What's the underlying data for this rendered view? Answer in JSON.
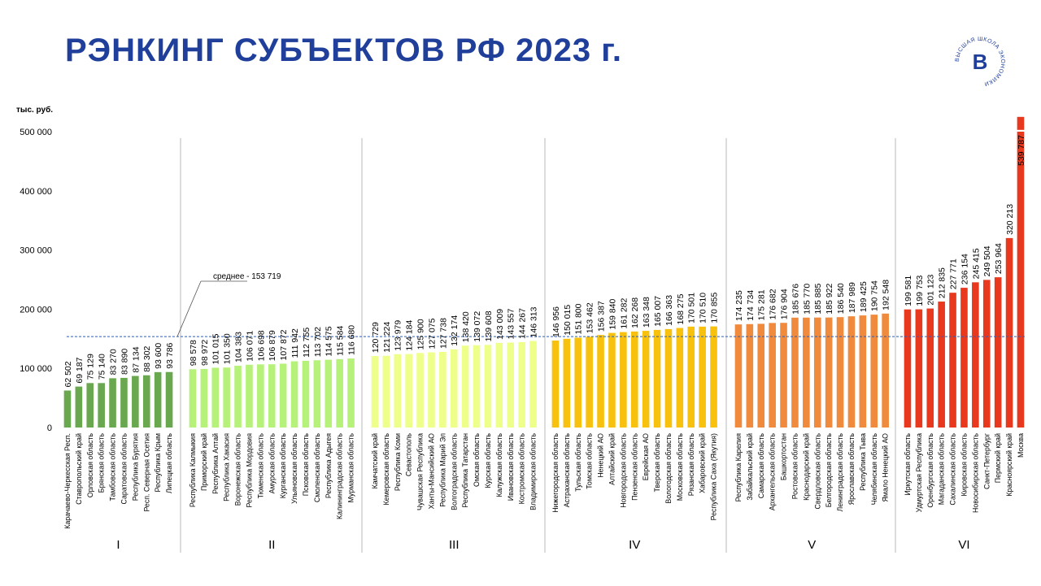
{
  "page": {
    "title": "РЭНКИНГ СУБЪЕКТОВ РФ 2023 г.",
    "logo_text": "ВЫСШАЯ ШКОЛА ЭКОНОМИКИ",
    "logo_mark": "В",
    "accent": "#1f3f9a"
  },
  "chart_data": {
    "type": "bar",
    "ylabel": "тыс. руб.",
    "ylim": [
      0,
      500000
    ],
    "yticks": [
      0,
      100000,
      200000,
      300000,
      400000,
      500000
    ],
    "ytick_labels": [
      "0",
      "100 000",
      "200 000",
      "300 000",
      "400 000",
      "500 000"
    ],
    "grid": false,
    "average": {
      "value": 153719,
      "label": "среднее - 153 719"
    },
    "groups": [
      {
        "label": "I",
        "color": "#6aa84f",
        "categories": [
          "Карачаево-Черкесская Респ.",
          "Ставропольский край",
          "Орловская область",
          "Брянская область",
          "Тамбовская область",
          "Саратовская область",
          "Республика Бурятия",
          "Респ. Северная Осетия",
          "Республика Крым",
          "Липецкая область"
        ],
        "values": [
          62502,
          69187,
          75129,
          75140,
          83270,
          83890,
          87134,
          88302,
          93600,
          93786
        ],
        "value_labels": [
          "62 502",
          "69 187",
          "75 129",
          "75 140",
          "83 270",
          "83 890",
          "87 134",
          "88 302",
          "93 600",
          "93 786"
        ]
      },
      {
        "label": "II",
        "color": "#b6f27a",
        "categories": [
          "Республика Калмыкия",
          "Приморский край",
          "Республика Алтай",
          "Республика Хакасия",
          "Воронежская область",
          "Республика Мордовия",
          "Тюменская область",
          "Амурская область",
          "Курганская область",
          "Ульяновская область",
          "Псковская область",
          "Смоленская область",
          "Республика Адыгея",
          "Калининградская область",
          "Мурманская область"
        ],
        "values": [
          98578,
          98972,
          101015,
          101350,
          104383,
          106071,
          106698,
          106879,
          107872,
          111942,
          112755,
          113702,
          114575,
          115584,
          116680
        ],
        "value_labels": [
          "98 578",
          "98 972",
          "101 015",
          "101 350",
          "104 383",
          "106 071",
          "106 698",
          "106 879",
          "107 872",
          "111 942",
          "112 755",
          "113 702",
          "114 575",
          "115 584",
          "116 680"
        ]
      },
      {
        "label": "III",
        "color": "#eeff8a",
        "categories": [
          "Камчатский край",
          "Кемеровская область",
          "Республика Коми",
          "Севастополь",
          "Чувашская Республика",
          "Ханты-Мансийский АО",
          "Республика Марий Эл",
          "Волгоградская область",
          "Республика Татарстан",
          "Омская область",
          "Курская область",
          "Калужская область",
          "Ивановская область",
          "Костромская область",
          "Владимирская область"
        ],
        "values": [
          120729,
          121224,
          123979,
          124184,
          125900,
          127075,
          127738,
          132174,
          138420,
          139072,
          139608,
          143009,
          143557,
          144267,
          146313
        ],
        "value_labels": [
          "120 729",
          "121 224",
          "123 979",
          "124 184",
          "125 900",
          "127 075",
          "127 738",
          "132 174",
          "138 420",
          "139 072",
          "139 608",
          "143 009",
          "143 557",
          "144 267",
          "146 313"
        ]
      },
      {
        "label": "IV",
        "color": "#f7c10d",
        "categories": [
          "Нижегородская область",
          "Астраханская область",
          "Тульская область",
          "Томская область",
          "Ненецкий АО",
          "Алтайский край",
          "Новгородская область",
          "Пензенская область",
          "Еврейская АО",
          "Тверская область",
          "Вологодская область",
          "Московская область",
          "Рязанская область",
          "Хабаровский край",
          "Республика Саха (Якутия)"
        ],
        "values": [
          146956,
          150015,
          151800,
          153462,
          156387,
          159840,
          161282,
          162268,
          163348,
          165007,
          166363,
          168275,
          170501,
          170510,
          170855
        ],
        "value_labels": [
          "146 956",
          "150 015",
          "151 800",
          "153 462",
          "156 387",
          "159 840",
          "161 282",
          "162 268",
          "163 348",
          "165 007",
          "166 363",
          "168 275",
          "170 501",
          "170 510",
          "170 855"
        ]
      },
      {
        "label": "V",
        "color": "#f08a3c",
        "categories": [
          "Республика Карелия",
          "Забайкальский край",
          "Самарская область",
          "Архангельская область",
          "Башкортостан",
          "Ростовская область",
          "Краснодарский край",
          "Свердловская область",
          "Белгородская область",
          "Ленинградская область",
          "Ярославская область",
          "Республика Тыва",
          "Челябинская область",
          "Ямало Ненецкий АО"
        ],
        "values": [
          174235,
          174734,
          175281,
          176682,
          176904,
          185676,
          185770,
          185885,
          185922,
          186540,
          187989,
          189425,
          190754,
          192548
        ],
        "value_labels": [
          "174 235",
          "174 734",
          "175 281",
          "176 682",
          "176 904",
          "185 676",
          "185 770",
          "185 885",
          "185 922",
          "186 540",
          "187 989",
          "189 425",
          "190 754",
          "192 548"
        ]
      },
      {
        "label": "VI",
        "color": "#e8391e",
        "categories": [
          "Иркутская область",
          "Удмуртская Республика",
          "Оренбургская область",
          "Магаданская область",
          "Сахалинская область",
          "Кировская область",
          "Новосибирская область",
          "Санкт-Петербург",
          "Пермский край",
          "Красноярский край",
          "Москва"
        ],
        "values": [
          199581,
          199753,
          201123,
          212835,
          227771,
          236154,
          245415,
          249504,
          253964,
          320213,
          539787
        ],
        "value_labels": [
          "199 581",
          "199 753",
          "201 123",
          "212 835",
          "227 771",
          "236 154",
          "245 415",
          "249 504",
          "253 964",
          "320 213",
          "539 787"
        ]
      }
    ]
  }
}
